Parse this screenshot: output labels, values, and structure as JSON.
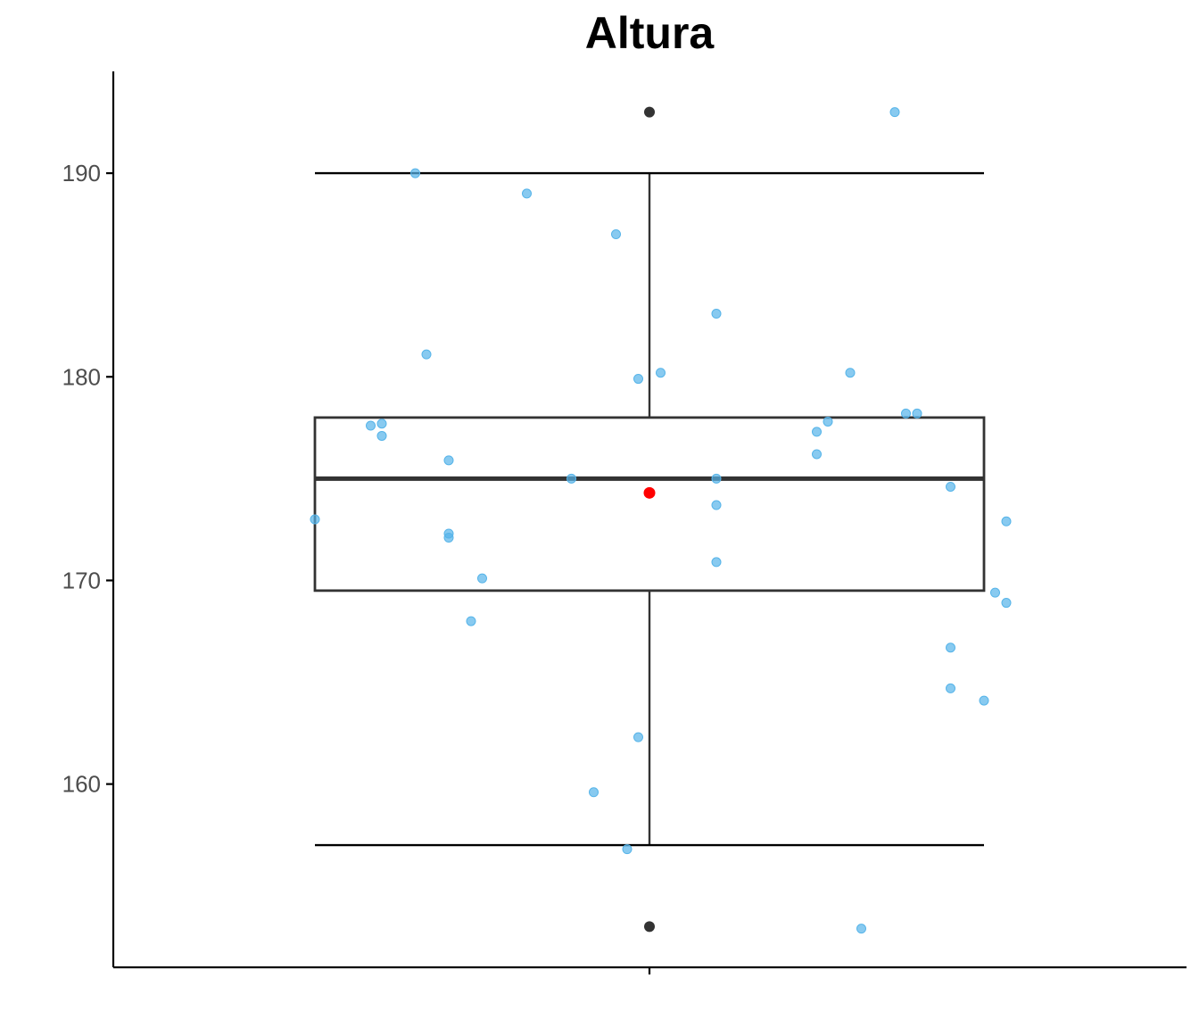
{
  "chart_data": {
    "type": "box",
    "title": "Altura",
    "xlabel": "",
    "ylabel": "",
    "ylim": [
      151,
      195
    ],
    "yticks": [
      160,
      170,
      180,
      190
    ],
    "grid": false,
    "box": {
      "q1": 169.5,
      "median": 175,
      "q3": 178,
      "whisker_low": 157,
      "whisker_high": 190,
      "outliers": [
        193,
        153
      ],
      "mean": 174.3
    },
    "jitter_points": [
      {
        "x": -0.3,
        "y": 173
      },
      {
        "x": -0.25,
        "y": 177.6
      },
      {
        "x": -0.24,
        "y": 177.1
      },
      {
        "x": -0.24,
        "y": 177.7
      },
      {
        "x": -0.21,
        "y": 190
      },
      {
        "x": -0.2,
        "y": 181.1
      },
      {
        "x": -0.18,
        "y": 172.3
      },
      {
        "x": -0.18,
        "y": 172.1
      },
      {
        "x": -0.18,
        "y": 175.9
      },
      {
        "x": -0.15,
        "y": 170.1
      },
      {
        "x": -0.16,
        "y": 168
      },
      {
        "x": -0.11,
        "y": 189
      },
      {
        "x": -0.07,
        "y": 175
      },
      {
        "x": -0.05,
        "y": 159.6
      },
      {
        "x": -0.03,
        "y": 187
      },
      {
        "x": -0.02,
        "y": 156.8
      },
      {
        "x": -0.01,
        "y": 162.3
      },
      {
        "x": -0.01,
        "y": 179.9
      },
      {
        "x": 0.0,
        "y": 174.3
      },
      {
        "x": 0.01,
        "y": 180.2
      },
      {
        "x": 0.06,
        "y": 183.1
      },
      {
        "x": 0.06,
        "y": 175
      },
      {
        "x": 0.06,
        "y": 173.7
      },
      {
        "x": 0.06,
        "y": 170.9
      },
      {
        "x": 0.15,
        "y": 177.3
      },
      {
        "x": 0.15,
        "y": 176.2
      },
      {
        "x": 0.16,
        "y": 177.8
      },
      {
        "x": 0.18,
        "y": 180.2
      },
      {
        "x": 0.19,
        "y": 152.9
      },
      {
        "x": 0.22,
        "y": 193
      },
      {
        "x": 0.23,
        "y": 178.2
      },
      {
        "x": 0.24,
        "y": 178.2
      },
      {
        "x": 0.27,
        "y": 174.6
      },
      {
        "x": 0.27,
        "y": 166.7
      },
      {
        "x": 0.27,
        "y": 164.7
      },
      {
        "x": 0.3,
        "y": 164.1
      },
      {
        "x": 0.31,
        "y": 169.4
      },
      {
        "x": 0.32,
        "y": 168.9
      },
      {
        "x": 0.32,
        "y": 172.9
      }
    ]
  },
  "colors": {
    "points": "#56B4E9",
    "mean": "#FF0000",
    "outliers": "#333333"
  }
}
